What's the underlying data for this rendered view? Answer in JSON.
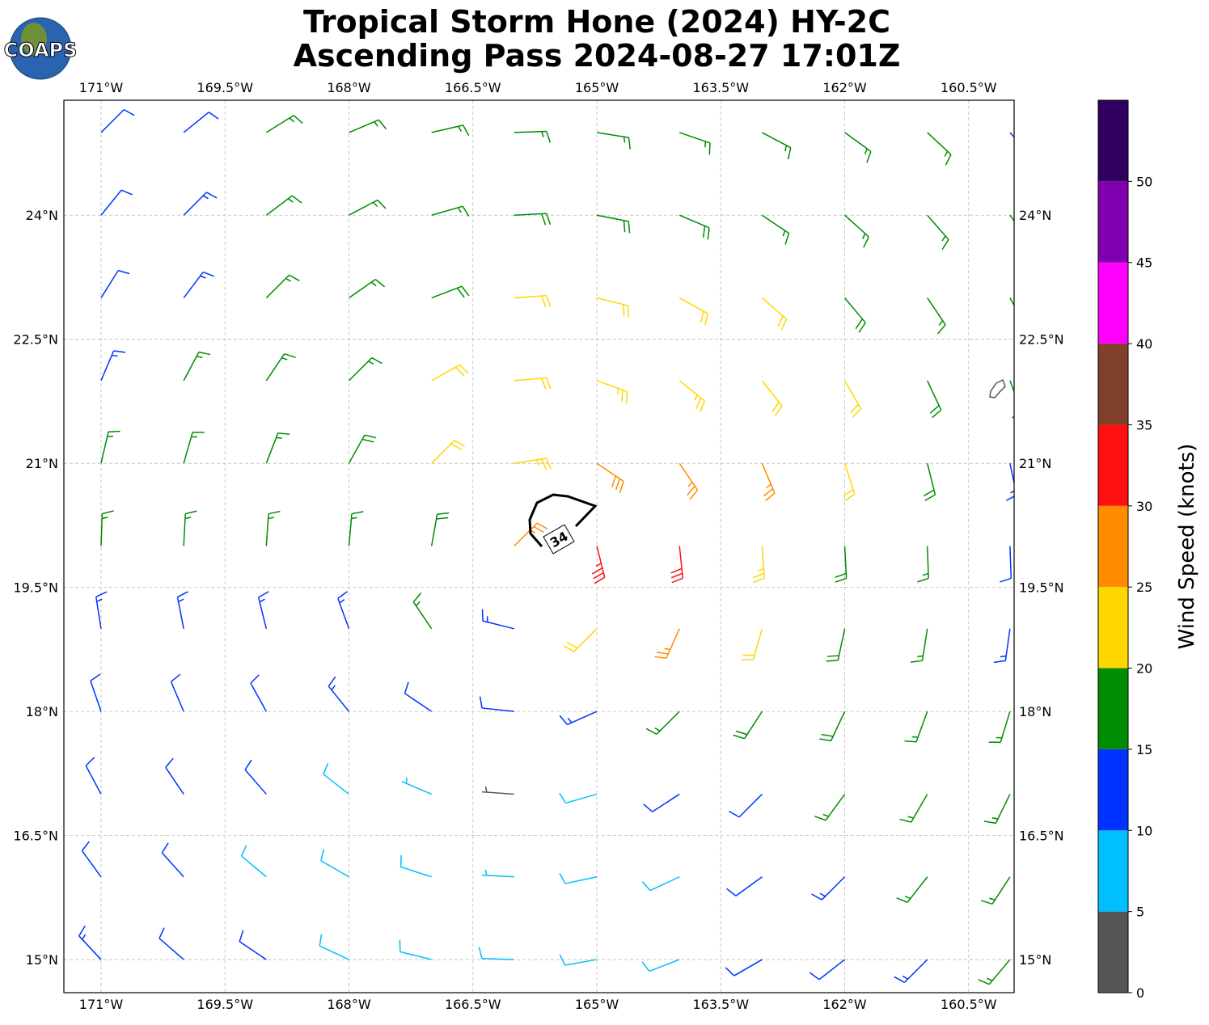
{
  "chart_data": {
    "type": "barbs",
    "logo": "COAPS",
    "title": "Tropical Storm Hone (2024) HY-2C",
    "subtitle": "Ascending Pass 2024-08-27 17:01Z",
    "xlim": [
      -171.45,
      -159.95
    ],
    "ylim": [
      14.6,
      25.39
    ],
    "xticks": [
      {
        "value": -171,
        "label": "171°W"
      },
      {
        "value": -169.5,
        "label": "169.5°W"
      },
      {
        "value": -168,
        "label": "168°W"
      },
      {
        "value": -166.5,
        "label": "166.5°W"
      },
      {
        "value": -165,
        "label": "165°W"
      },
      {
        "value": -163.5,
        "label": "163.5°W"
      },
      {
        "value": -162,
        "label": "162°W"
      },
      {
        "value": -160.5,
        "label": "160.5°W"
      }
    ],
    "yticks": [
      {
        "value": 15,
        "label": "15°N"
      },
      {
        "value": 16.5,
        "label": "16.5°N"
      },
      {
        "value": 18,
        "label": "18°N"
      },
      {
        "value": 19.5,
        "label": "19.5°N"
      },
      {
        "value": 21,
        "label": "21°N"
      },
      {
        "value": 22.5,
        "label": "22.5°N"
      },
      {
        "value": 24,
        "label": "24°N"
      }
    ],
    "grid": true,
    "lons": [
      -171,
      -170,
      -169,
      -168,
      -167,
      -166,
      -165,
      -164,
      -163,
      -162,
      -161,
      -160
    ],
    "lats": [
      25,
      24,
      23,
      22,
      21,
      20,
      19,
      18,
      17,
      16,
      15
    ],
    "speeds": [
      [
        12,
        12,
        15,
        17,
        17,
        17,
        17,
        17,
        17,
        16,
        15,
        13
      ],
      [
        12,
        13,
        15,
        16,
        17,
        18,
        19,
        18,
        17,
        17,
        16,
        15
      ],
      [
        11,
        13,
        15,
        17,
        19,
        21,
        22,
        21,
        20,
        18,
        17,
        16
      ],
      [
        14,
        15,
        16,
        17,
        20,
        22,
        23,
        24,
        22,
        21,
        19,
        16
      ],
      [
        16,
        16,
        17,
        18,
        21,
        24,
        28,
        27,
        25,
        22,
        18,
        13
      ],
      [
        16,
        15,
        16,
        17,
        19,
        26,
        33,
        31,
        24,
        19,
        15,
        12
      ],
      [
        13,
        14,
        14,
        14,
        16,
        14,
        20,
        26,
        22,
        18,
        16,
        14
      ],
      [
        12,
        12,
        12,
        13,
        12,
        12,
        14,
        17,
        19,
        18,
        17,
        16
      ],
      [
        11,
        11,
        10,
        8,
        6,
        4,
        8,
        10,
        12,
        15,
        17,
        17
      ],
      [
        12,
        11,
        9,
        8,
        8,
        7,
        8,
        9,
        11,
        13,
        15,
        17
      ],
      [
        13,
        12,
        10,
        8,
        8,
        9,
        8,
        9,
        10,
        12,
        14,
        15
      ]
    ],
    "directions": [
      [
        45,
        51,
        58,
        67,
        77,
        88,
        99,
        109,
        118,
        126,
        133,
        138
      ],
      [
        39,
        45,
        53,
        62,
        74,
        87,
        101,
        113,
        124,
        132,
        139,
        144
      ],
      [
        32,
        37,
        45,
        55,
        69,
        86,
        104,
        119,
        131,
        140,
        146,
        151
      ],
      [
        23,
        28,
        34,
        45,
        61,
        85,
        110,
        129,
        142,
        150,
        155,
        159
      ],
      [
        13,
        16,
        21,
        29,
        45,
        81,
        124,
        146,
        157,
        162,
        166,
        168
      ],
      [
        2,
        3,
        4,
        5,
        10,
        45,
        166,
        174,
        176,
        177,
        178,
        178
      ],
      [
        351,
        349,
        346,
        340,
        326,
        284,
        225,
        204,
        196,
        192,
        189,
        188
      ],
      [
        341,
        337,
        331,
        321,
        304,
        276,
        246,
        225,
        213,
        205,
        200,
        197
      ],
      [
        332,
        326,
        319,
        308,
        293,
        274,
        254,
        237,
        225,
        216,
        210,
        206
      ],
      [
        324,
        318,
        310,
        300,
        288,
        273,
        258,
        245,
        234,
        225,
        218,
        213
      ],
      [
        317,
        311,
        304,
        295,
        284,
        272,
        260,
        249,
        240,
        232,
        225,
        220
      ]
    ],
    "contour_level": 34,
    "colorbar": {
      "label": "Wind Speed (knots)",
      "lim": [
        0,
        55
      ],
      "ticks": [
        0,
        5,
        10,
        15,
        20,
        25,
        30,
        35,
        40,
        45,
        50
      ],
      "colors": [
        "#555555",
        "#00bfff",
        "#0033ff",
        "#008c00",
        "#ffd700",
        "#ff8c00",
        "#ff1010",
        "#80402a",
        "#ff00ff",
        "#8000b0",
        "#300060"
      ]
    }
  }
}
